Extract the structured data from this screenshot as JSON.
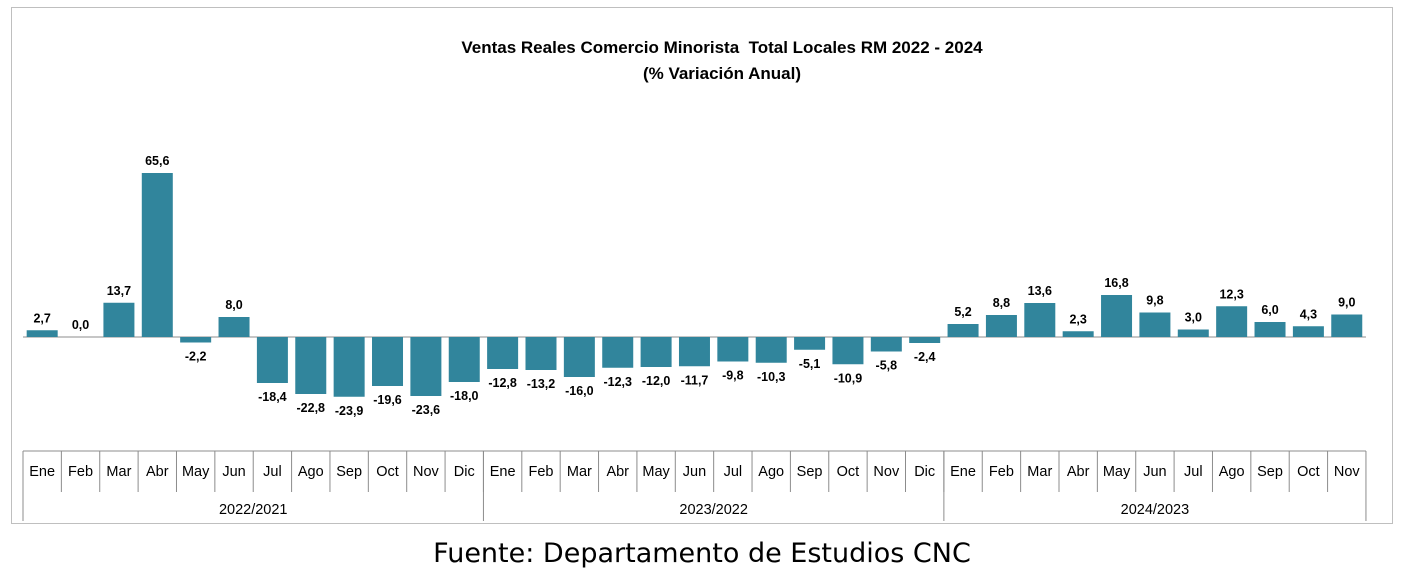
{
  "chart_data": {
    "type": "bar",
    "title": "Ventas Reales Comercio Minorista  Total Locales RM 2022 - 2024",
    "subtitle": "(% Variación Anual)",
    "groups": [
      {
        "label": "2022/2021",
        "categories": [
          "Ene",
          "Feb",
          "Mar",
          "Abr",
          "May",
          "Jun",
          "Jul",
          "Ago",
          "Sep",
          "Oct",
          "Nov",
          "Dic"
        ],
        "values": [
          2.7,
          0.0,
          13.7,
          65.6,
          -2.2,
          8.0,
          -18.4,
          -22.8,
          -23.9,
          -19.6,
          -23.6,
          -18.0
        ],
        "value_labels": [
          "2,7",
          "0,0",
          "13,7",
          "65,6",
          "-2,2",
          "8,0",
          "-18,4",
          "-22,8",
          "-23,9",
          "-19,6",
          "-23,6",
          "-18,0"
        ]
      },
      {
        "label": "2023/2022",
        "categories": [
          "Ene",
          "Feb",
          "Mar",
          "Abr",
          "May",
          "Jun",
          "Jul",
          "Ago",
          "Sep",
          "Oct",
          "Nov",
          "Dic"
        ],
        "values": [
          -12.8,
          -13.2,
          -16.0,
          -12.3,
          -12.0,
          -11.7,
          -9.8,
          -10.3,
          -5.1,
          -10.9,
          -5.8,
          -2.4
        ],
        "value_labels": [
          "-12,8",
          "-13,2",
          "-16,0",
          "-12,3",
          "-12,0",
          "-11,7",
          "-9,8",
          "-10,3",
          "-5,1",
          "-10,9",
          "-5,8",
          "-2,4"
        ]
      },
      {
        "label": "2024/2023",
        "categories": [
          "Ene",
          "Feb",
          "Mar",
          "Abr",
          "May",
          "Jun",
          "Jul",
          "Ago",
          "Sep",
          "Oct",
          "Nov"
        ],
        "values": [
          5.2,
          8.8,
          13.6,
          2.3,
          16.8,
          9.8,
          3.0,
          12.3,
          6.0,
          4.3,
          9.0
        ],
        "value_labels": [
          "5,2",
          "8,8",
          "13,6",
          "2,3",
          "16,8",
          "9,8",
          "3,0",
          "12,3",
          "6,0",
          "4,3",
          "9,0"
        ]
      }
    ],
    "bar_color": "#31859c",
    "legend": "none",
    "grid": false
  },
  "source_note": "Fuente: Departamento de Estudios CNC"
}
